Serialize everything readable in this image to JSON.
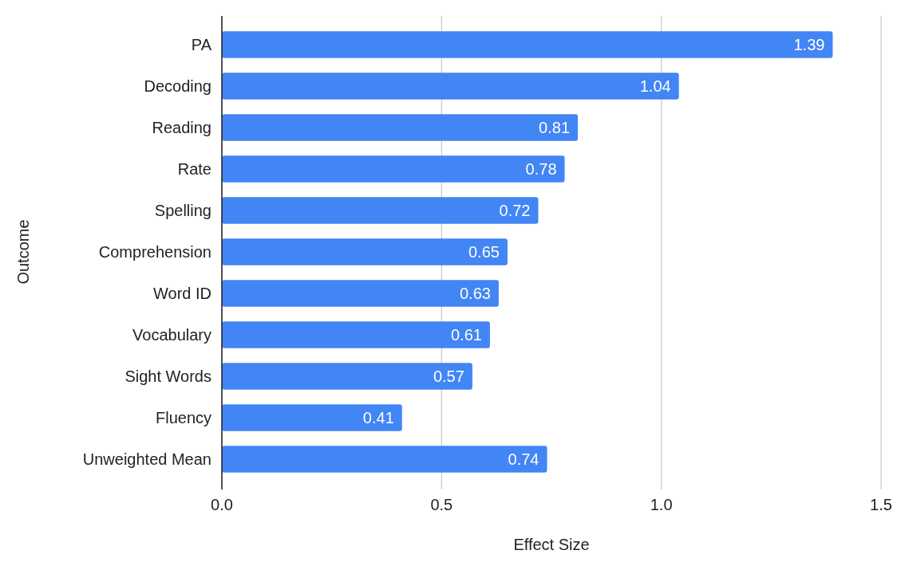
{
  "chart_data": {
    "type": "bar",
    "orientation": "horizontal",
    "xlabel": "Effect Size",
    "ylabel": "Outcome",
    "categories": [
      "PA",
      "Decoding",
      "Reading",
      "Rate",
      "Spelling",
      "Comprehension",
      "Word ID",
      "Vocabulary",
      "Sight Words",
      "Fluency",
      "Unweighted Mean"
    ],
    "values": [
      1.39,
      1.04,
      0.81,
      0.78,
      0.72,
      0.65,
      0.63,
      0.61,
      0.57,
      0.41,
      0.74
    ],
    "color": "#4285f4",
    "xlim": [
      0,
      1.5
    ],
    "xticks": [
      {
        "value": 0,
        "label": "0.0"
      },
      {
        "value": 0.5,
        "label": "0.5"
      },
      {
        "value": 1,
        "label": "1.0"
      },
      {
        "value": 1.5,
        "label": "1.5"
      }
    ],
    "grid": "x",
    "data_labels": true
  }
}
